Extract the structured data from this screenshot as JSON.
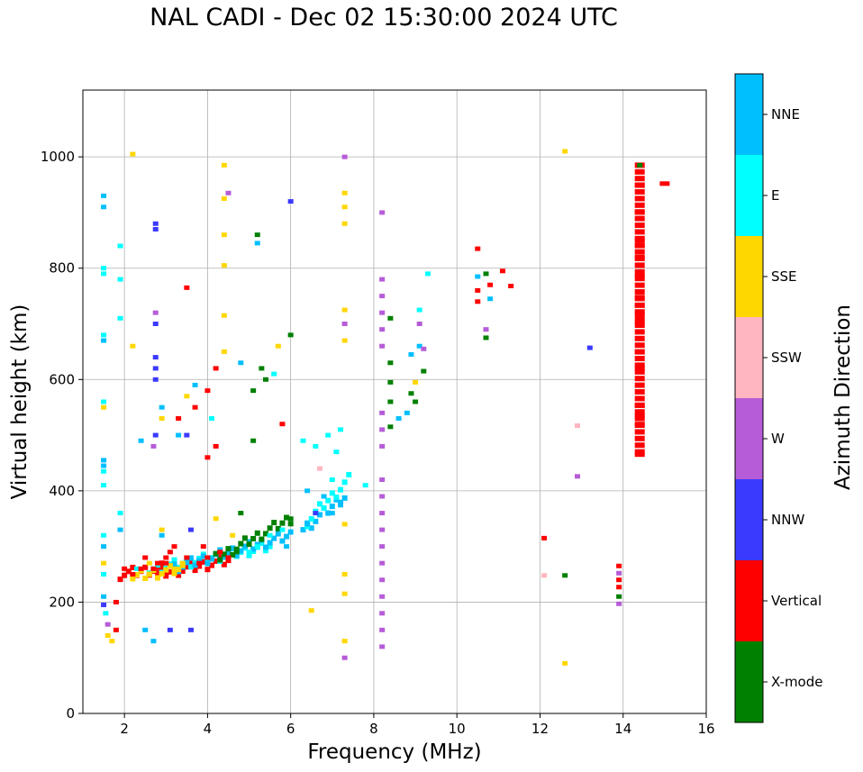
{
  "chart_data": {
    "type": "scatter",
    "title": "NAL CADI - Dec 02 15:30:00 2024 UTC",
    "xlabel": "Frequency (MHz)",
    "ylabel": "Virtual height (km)",
    "xlim": [
      1,
      16
    ],
    "ylim": [
      0,
      1120
    ],
    "grid": true,
    "x_ticks": [
      2,
      4,
      6,
      8,
      10,
      12,
      14,
      16
    ],
    "y_ticks": [
      0,
      200,
      400,
      600,
      800,
      1000
    ],
    "colorbar": {
      "title": "Azimuth Direction",
      "categories": [
        {
          "name": "X-mode",
          "color": "#008000"
        },
        {
          "name": "Vertical",
          "color": "#ff0000"
        },
        {
          "name": "NNW",
          "color": "#3a3aff"
        },
        {
          "name": "W",
          "color": "#b65cd8"
        },
        {
          "name": "SSW",
          "color": "#ffb6c1"
        },
        {
          "name": "SSE",
          "color": "#ffd700"
        },
        {
          "name": "E",
          "color": "#00ffff"
        },
        {
          "name": "NNE",
          "color": "#00bfff"
        }
      ]
    },
    "points": [
      {
        "x": 1.5,
        "h": 930,
        "c": "NNE"
      },
      {
        "x": 1.5,
        "h": 910,
        "c": "NNE"
      },
      {
        "x": 1.5,
        "h": 800,
        "c": "E"
      },
      {
        "x": 1.5,
        "h": 790,
        "c": "E"
      },
      {
        "x": 1.5,
        "h": 680,
        "c": "E"
      },
      {
        "x": 1.5,
        "h": 670,
        "c": "NNE"
      },
      {
        "x": 1.5,
        "h": 560,
        "c": "E"
      },
      {
        "x": 1.5,
        "h": 550,
        "c": "SSE"
      },
      {
        "x": 1.5,
        "h": 455,
        "c": "NNE"
      },
      {
        "x": 1.5,
        "h": 445,
        "c": "NNE"
      },
      {
        "x": 1.5,
        "h": 435,
        "c": "E"
      },
      {
        "x": 1.5,
        "h": 410,
        "c": "E"
      },
      {
        "x": 1.5,
        "h": 320,
        "c": "E"
      },
      {
        "x": 1.5,
        "h": 300,
        "c": "NNE"
      },
      {
        "x": 1.5,
        "h": 270,
        "c": "SSE"
      },
      {
        "x": 1.5,
        "h": 250,
        "c": "E"
      },
      {
        "x": 1.5,
        "h": 210,
        "c": "NNE"
      },
      {
        "x": 1.5,
        "h": 195,
        "c": "NNW"
      },
      {
        "x": 1.55,
        "h": 180,
        "c": "E"
      },
      {
        "x": 1.6,
        "h": 160,
        "c": "W"
      },
      {
        "x": 1.6,
        "h": 140,
        "c": "SSE"
      },
      {
        "x": 1.7,
        "h": 130,
        "c": "SSE"
      },
      {
        "x": 1.8,
        "h": 200,
        "c": "Vertical"
      },
      {
        "x": 1.8,
        "h": 150,
        "c": "Vertical"
      },
      {
        "x": 1.9,
        "h": 840,
        "c": "E"
      },
      {
        "x": 1.9,
        "h": 780,
        "c": "E"
      },
      {
        "x": 1.9,
        "h": 710,
        "c": "E"
      },
      {
        "x": 1.9,
        "h": 360,
        "c": "E"
      },
      {
        "x": 1.9,
        "h": 330,
        "c": "NNE"
      },
      {
        "x": 2.0,
        "h": 260,
        "c": "Vertical"
      },
      {
        "x": 2.2,
        "h": 1005,
        "c": "SSE"
      },
      {
        "x": 2.2,
        "h": 660,
        "c": "SSE"
      },
      {
        "x": 2.2,
        "h": 250,
        "c": "Vertical"
      },
      {
        "x": 2.3,
        "h": 260,
        "c": "E"
      },
      {
        "x": 2.4,
        "h": 490,
        "c": "NNE"
      },
      {
        "x": 2.4,
        "h": 260,
        "c": "Vertical"
      },
      {
        "x": 2.5,
        "h": 280,
        "c": "Vertical"
      },
      {
        "x": 2.5,
        "h": 150,
        "c": "NNE"
      },
      {
        "x": 2.6,
        "h": 270,
        "c": "SSE"
      },
      {
        "x": 2.7,
        "h": 260,
        "c": "Vertical"
      },
      {
        "x": 2.7,
        "h": 480,
        "c": "W"
      },
      {
        "x": 2.7,
        "h": 130,
        "c": "NNE"
      },
      {
        "x": 2.75,
        "h": 880,
        "c": "NNW"
      },
      {
        "x": 2.75,
        "h": 870,
        "c": "NNW"
      },
      {
        "x": 2.75,
        "h": 720,
        "c": "W"
      },
      {
        "x": 2.75,
        "h": 700,
        "c": "NNW"
      },
      {
        "x": 2.75,
        "h": 640,
        "c": "NNW"
      },
      {
        "x": 2.75,
        "h": 620,
        "c": "NNW"
      },
      {
        "x": 2.75,
        "h": 600,
        "c": "NNW"
      },
      {
        "x": 2.75,
        "h": 500,
        "c": "NNW"
      },
      {
        "x": 2.8,
        "h": 270,
        "c": "Vertical"
      },
      {
        "x": 2.9,
        "h": 550,
        "c": "NNE"
      },
      {
        "x": 2.9,
        "h": 530,
        "c": "SSE"
      },
      {
        "x": 2.9,
        "h": 330,
        "c": "SSE"
      },
      {
        "x": 2.9,
        "h": 320,
        "c": "NNE"
      },
      {
        "x": 3.0,
        "h": 280,
        "c": "Vertical"
      },
      {
        "x": 3.0,
        "h": 270,
        "c": "Vertical"
      },
      {
        "x": 3.1,
        "h": 150,
        "c": "NNW"
      },
      {
        "x": 3.1,
        "h": 290,
        "c": "Vertical"
      },
      {
        "x": 3.2,
        "h": 300,
        "c": "Vertical"
      },
      {
        "x": 3.2,
        "h": 260,
        "c": "SSE"
      },
      {
        "x": 3.3,
        "h": 530,
        "c": "Vertical"
      },
      {
        "x": 3.3,
        "h": 500,
        "c": "NNE"
      },
      {
        "x": 3.4,
        "h": 270,
        "c": "SSE"
      },
      {
        "x": 3.5,
        "h": 765,
        "c": "Vertical"
      },
      {
        "x": 3.5,
        "h": 570,
        "c": "SSE"
      },
      {
        "x": 3.5,
        "h": 500,
        "c": "NNW"
      },
      {
        "x": 3.5,
        "h": 280,
        "c": "Vertical"
      },
      {
        "x": 3.6,
        "h": 330,
        "c": "NNW"
      },
      {
        "x": 3.6,
        "h": 150,
        "c": "NNW"
      },
      {
        "x": 3.7,
        "h": 590,
        "c": "NNE"
      },
      {
        "x": 3.7,
        "h": 550,
        "c": "Vertical"
      },
      {
        "x": 3.8,
        "h": 270,
        "c": "Vertical"
      },
      {
        "x": 3.9,
        "h": 300,
        "c": "Vertical"
      },
      {
        "x": 4.0,
        "h": 580,
        "c": "Vertical"
      },
      {
        "x": 4.0,
        "h": 460,
        "c": "Vertical"
      },
      {
        "x": 4.0,
        "h": 280,
        "c": "Vertical"
      },
      {
        "x": 4.1,
        "h": 530,
        "c": "E"
      },
      {
        "x": 4.2,
        "h": 620,
        "c": "Vertical"
      },
      {
        "x": 4.2,
        "h": 480,
        "c": "Vertical"
      },
      {
        "x": 4.2,
        "h": 350,
        "c": "SSE"
      },
      {
        "x": 4.3,
        "h": 290,
        "c": "Vertical"
      },
      {
        "x": 4.4,
        "h": 985,
        "c": "SSE"
      },
      {
        "x": 4.4,
        "h": 925,
        "c": "SSE"
      },
      {
        "x": 4.4,
        "h": 860,
        "c": "SSE"
      },
      {
        "x": 4.4,
        "h": 805,
        "c": "SSE"
      },
      {
        "x": 4.4,
        "h": 715,
        "c": "SSE"
      },
      {
        "x": 4.4,
        "h": 650,
        "c": "SSE"
      },
      {
        "x": 4.5,
        "h": 935,
        "c": "W"
      },
      {
        "x": 4.5,
        "h": 280,
        "c": "Vertical"
      },
      {
        "x": 4.6,
        "h": 320,
        "c": "SSE"
      },
      {
        "x": 4.7,
        "h": 290,
        "c": "X-mode"
      },
      {
        "x": 4.8,
        "h": 630,
        "c": "NNE"
      },
      {
        "x": 4.8,
        "h": 360,
        "c": "X-mode"
      },
      {
        "x": 5.0,
        "h": 290,
        "c": "E"
      },
      {
        "x": 5.1,
        "h": 490,
        "c": "X-mode"
      },
      {
        "x": 5.1,
        "h": 580,
        "c": "X-mode"
      },
      {
        "x": 5.2,
        "h": 860,
        "c": "X-mode"
      },
      {
        "x": 5.2,
        "h": 845,
        "c": "NNE"
      },
      {
        "x": 5.2,
        "h": 300,
        "c": "E"
      },
      {
        "x": 5.3,
        "h": 620,
        "c": "X-mode"
      },
      {
        "x": 5.4,
        "h": 600,
        "c": "X-mode"
      },
      {
        "x": 5.5,
        "h": 320,
        "c": "E"
      },
      {
        "x": 5.6,
        "h": 610,
        "c": "E"
      },
      {
        "x": 5.7,
        "h": 660,
        "c": "SSE"
      },
      {
        "x": 5.8,
        "h": 520,
        "c": "Vertical"
      },
      {
        "x": 5.8,
        "h": 330,
        "c": "E"
      },
      {
        "x": 5.9,
        "h": 300,
        "c": "NNE"
      },
      {
        "x": 6.0,
        "h": 680,
        "c": "X-mode"
      },
      {
        "x": 6.0,
        "h": 920,
        "c": "NNW"
      },
      {
        "x": 6.0,
        "h": 350,
        "c": "X-mode"
      },
      {
        "x": 6.3,
        "h": 490,
        "c": "E"
      },
      {
        "x": 6.4,
        "h": 400,
        "c": "NNE"
      },
      {
        "x": 6.4,
        "h": 340,
        "c": "NNE"
      },
      {
        "x": 6.5,
        "h": 185,
        "c": "SSE"
      },
      {
        "x": 6.6,
        "h": 480,
        "c": "E"
      },
      {
        "x": 6.6,
        "h": 360,
        "c": "NNW"
      },
      {
        "x": 6.7,
        "h": 440,
        "c": "SSW"
      },
      {
        "x": 6.8,
        "h": 390,
        "c": "NNE"
      },
      {
        "x": 6.9,
        "h": 500,
        "c": "E"
      },
      {
        "x": 7.0,
        "h": 420,
        "c": "E"
      },
      {
        "x": 7.0,
        "h": 360,
        "c": "NNE"
      },
      {
        "x": 7.1,
        "h": 470,
        "c": "E"
      },
      {
        "x": 7.2,
        "h": 510,
        "c": "E"
      },
      {
        "x": 7.2,
        "h": 380,
        "c": "NNE"
      },
      {
        "x": 7.3,
        "h": 1000,
        "c": "W"
      },
      {
        "x": 7.3,
        "h": 935,
        "c": "SSE"
      },
      {
        "x": 7.3,
        "h": 910,
        "c": "SSE"
      },
      {
        "x": 7.3,
        "h": 880,
        "c": "SSE"
      },
      {
        "x": 7.3,
        "h": 725,
        "c": "SSE"
      },
      {
        "x": 7.3,
        "h": 700,
        "c": "W"
      },
      {
        "x": 7.3,
        "h": 670,
        "c": "SSE"
      },
      {
        "x": 7.3,
        "h": 340,
        "c": "SSE"
      },
      {
        "x": 7.3,
        "h": 250,
        "c": "SSE"
      },
      {
        "x": 7.3,
        "h": 215,
        "c": "SSE"
      },
      {
        "x": 7.3,
        "h": 130,
        "c": "SSE"
      },
      {
        "x": 7.3,
        "h": 100,
        "c": "W"
      },
      {
        "x": 7.8,
        "h": 410,
        "c": "E"
      },
      {
        "x": 8.2,
        "h": 900,
        "c": "W"
      },
      {
        "x": 8.2,
        "h": 780,
        "c": "W"
      },
      {
        "x": 8.2,
        "h": 750,
        "c": "W"
      },
      {
        "x": 8.2,
        "h": 720,
        "c": "W"
      },
      {
        "x": 8.2,
        "h": 690,
        "c": "W"
      },
      {
        "x": 8.2,
        "h": 660,
        "c": "W"
      },
      {
        "x": 8.2,
        "h": 540,
        "c": "W"
      },
      {
        "x": 8.2,
        "h": 510,
        "c": "W"
      },
      {
        "x": 8.2,
        "h": 480,
        "c": "W"
      },
      {
        "x": 8.2,
        "h": 420,
        "c": "W"
      },
      {
        "x": 8.2,
        "h": 390,
        "c": "W"
      },
      {
        "x": 8.2,
        "h": 360,
        "c": "W"
      },
      {
        "x": 8.2,
        "h": 330,
        "c": "W"
      },
      {
        "x": 8.2,
        "h": 300,
        "c": "W"
      },
      {
        "x": 8.2,
        "h": 270,
        "c": "W"
      },
      {
        "x": 8.2,
        "h": 240,
        "c": "W"
      },
      {
        "x": 8.2,
        "h": 210,
        "c": "W"
      },
      {
        "x": 8.2,
        "h": 180,
        "c": "W"
      },
      {
        "x": 8.2,
        "h": 150,
        "c": "W"
      },
      {
        "x": 8.2,
        "h": 120,
        "c": "W"
      },
      {
        "x": 8.4,
        "h": 710,
        "c": "X-mode"
      },
      {
        "x": 8.4,
        "h": 630,
        "c": "X-mode"
      },
      {
        "x": 8.4,
        "h": 595,
        "c": "X-mode"
      },
      {
        "x": 8.4,
        "h": 560,
        "c": "X-mode"
      },
      {
        "x": 8.4,
        "h": 515,
        "c": "X-mode"
      },
      {
        "x": 8.6,
        "h": 530,
        "c": "NNE"
      },
      {
        "x": 8.8,
        "h": 540,
        "c": "NNE"
      },
      {
        "x": 8.9,
        "h": 645,
        "c": "NNE"
      },
      {
        "x": 8.9,
        "h": 575,
        "c": "X-mode"
      },
      {
        "x": 9.0,
        "h": 595,
        "c": "SSE"
      },
      {
        "x": 9.0,
        "h": 560,
        "c": "X-mode"
      },
      {
        "x": 9.1,
        "h": 725,
        "c": "E"
      },
      {
        "x": 9.1,
        "h": 700,
        "c": "W"
      },
      {
        "x": 9.1,
        "h": 660,
        "c": "NNE"
      },
      {
        "x": 9.2,
        "h": 655,
        "c": "W"
      },
      {
        "x": 9.2,
        "h": 615,
        "c": "X-mode"
      },
      {
        "x": 9.3,
        "h": 790,
        "c": "E"
      },
      {
        "x": 10.5,
        "h": 835,
        "c": "Vertical"
      },
      {
        "x": 10.5,
        "h": 785,
        "c": "NNE"
      },
      {
        "x": 10.5,
        "h": 760,
        "c": "Vertical"
      },
      {
        "x": 10.5,
        "h": 740,
        "c": "Vertical"
      },
      {
        "x": 10.7,
        "h": 790,
        "c": "X-mode"
      },
      {
        "x": 10.7,
        "h": 690,
        "c": "W"
      },
      {
        "x": 10.7,
        "h": 675,
        "c": "X-mode"
      },
      {
        "x": 10.8,
        "h": 770,
        "c": "Vertical"
      },
      {
        "x": 10.8,
        "h": 745,
        "c": "NNE"
      },
      {
        "x": 11.1,
        "h": 795,
        "c": "Vertical"
      },
      {
        "x": 11.3,
        "h": 768,
        "c": "Vertical"
      },
      {
        "x": 12.1,
        "h": 315,
        "c": "Vertical"
      },
      {
        "x": 12.1,
        "h": 248,
        "c": "SSW"
      },
      {
        "x": 12.6,
        "h": 1010,
        "c": "SSE"
      },
      {
        "x": 12.6,
        "h": 248,
        "c": "X-mode"
      },
      {
        "x": 12.6,
        "h": 90,
        "c": "SSE"
      },
      {
        "x": 12.9,
        "h": 517,
        "c": "SSW"
      },
      {
        "x": 12.9,
        "h": 426,
        "c": "W"
      },
      {
        "x": 13.2,
        "h": 657,
        "c": "NNW"
      },
      {
        "x": 13.9,
        "h": 265,
        "c": "Vertical"
      },
      {
        "x": 13.9,
        "h": 252,
        "c": "W"
      },
      {
        "x": 13.9,
        "h": 240,
        "c": "Vertical"
      },
      {
        "x": 13.9,
        "h": 227,
        "c": "Vertical"
      },
      {
        "x": 13.9,
        "h": 210,
        "c": "X-mode"
      },
      {
        "x": 13.9,
        "h": 197,
        "c": "W"
      },
      {
        "x": 14.4,
        "h": 985,
        "c": "X-mode"
      },
      {
        "x": 14.4,
        "h": 950,
        "c": "Vertical"
      },
      {
        "x": 14.4,
        "h": 900,
        "c": "Vertical"
      },
      {
        "x": 14.4,
        "h": 850,
        "c": "Vertical"
      },
      {
        "x": 14.4,
        "h": 840,
        "c": "Vertical"
      },
      {
        "x": 14.4,
        "h": 820,
        "c": "Vertical"
      },
      {
        "x": 14.4,
        "h": 786,
        "c": "Vertical"
      },
      {
        "x": 14.4,
        "h": 748,
        "c": "Vertical"
      },
      {
        "x": 14.4,
        "h": 733,
        "c": "Vertical"
      },
      {
        "x": 14.4,
        "h": 718,
        "c": "Vertical"
      },
      {
        "x": 14.4,
        "h": 703,
        "c": "Vertical"
      },
      {
        "x": 14.4,
        "h": 650,
        "c": "Vertical"
      },
      {
        "x": 14.4,
        "h": 620,
        "c": "Vertical"
      },
      {
        "x": 14.4,
        "h": 553,
        "c": "Vertical"
      },
      {
        "x": 14.4,
        "h": 535,
        "c": "Vertical"
      },
      {
        "x": 14.4,
        "h": 520,
        "c": "Vertical"
      },
      {
        "x": 14.4,
        "h": 465,
        "c": "Vertical"
      },
      {
        "x": 15.0,
        "h": 952,
        "c": "Vertical"
      }
    ],
    "trace_segments": [
      {
        "x0": 1.9,
        "h0": 250,
        "x1": 3.0,
        "h1": 262,
        "c": "Vertical"
      },
      {
        "x0": 2.8,
        "h0": 250,
        "x1": 4.5,
        "h1": 275,
        "c": "Vertical"
      },
      {
        "x0": 2.6,
        "h0": 258,
        "x1": 5.5,
        "h1": 300,
        "c": "E"
      },
      {
        "x0": 3.2,
        "h0": 262,
        "x1": 6.0,
        "h1": 320,
        "c": "NNE"
      },
      {
        "x0": 2.2,
        "h0": 245,
        "x1": 3.4,
        "h1": 260,
        "c": "SSE"
      },
      {
        "x0": 4.2,
        "h0": 278,
        "x1": 6.0,
        "h1": 350,
        "c": "X-mode"
      },
      {
        "x0": 6.3,
        "h0": 330,
        "x1": 7.3,
        "h1": 390,
        "c": "NNE"
      },
      {
        "x0": 6.4,
        "h0": 345,
        "x1": 7.4,
        "h1": 420,
        "c": "E"
      },
      {
        "x0": 14.4,
        "h0": 470,
        "x1": 14.4,
        "h1": 985,
        "c": "Vertical"
      }
    ]
  }
}
